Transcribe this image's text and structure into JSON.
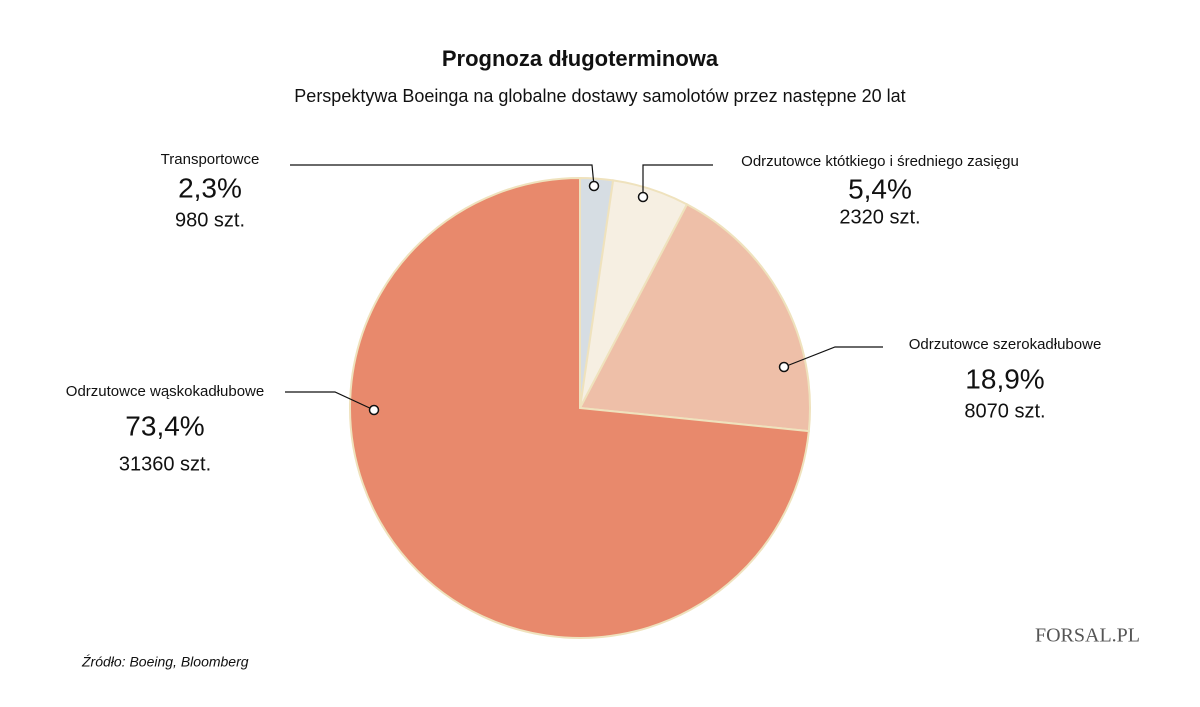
{
  "chart_data": {
    "type": "pie",
    "title": "Prognoza długoterminowa",
    "subtitle": "Perspektywa Boeinga na globalne dostawy samolotów przez następne 20 lat",
    "categories": [
      "Transportowce",
      "Odrzutowce któtkiego i średniego zasięgu",
      "Odrzutowce szerokadłubowe",
      "Odrzutowce wąskokadłubowe"
    ],
    "values": [
      2.3,
      5.4,
      18.9,
      73.4
    ],
    "value_labels": [
      "2,3%",
      "5,4%",
      "18,9%",
      "73,4%"
    ],
    "counts": [
      980,
      2320,
      8070,
      31360
    ],
    "count_labels": [
      "980 szt.",
      "2320 szt.",
      "8070 szt.",
      "31360 szt."
    ],
    "colors": [
      "#d6dde3",
      "#f6efe2",
      "#eebfa8",
      "#e8896c"
    ],
    "source": "Źródło: Boeing, Bloomberg",
    "logo": "FORSAL.PL"
  }
}
